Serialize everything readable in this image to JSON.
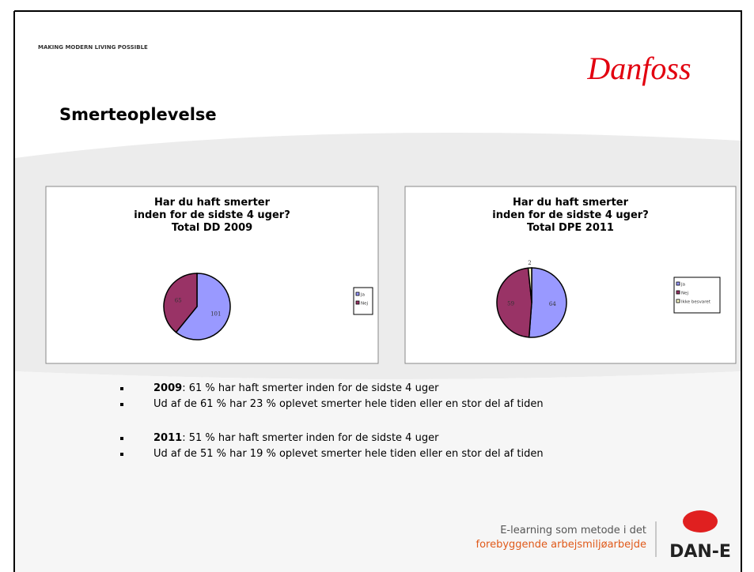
{
  "header": {
    "tagline": "MAKING MODERN LIVING POSSIBLE",
    "logo": "Danfoss",
    "title": "Smerteoplevelse"
  },
  "chart_data": [
    {
      "type": "pie",
      "title": [
        "Har du haft smerter",
        "inden for de sidste 4 uger?",
        "Total DD 2009"
      ],
      "categories": [
        "Ja",
        "Nej"
      ],
      "values": [
        101,
        65
      ],
      "colors": [
        "#9999ff",
        "#993366"
      ],
      "legend": "right"
    },
    {
      "type": "pie",
      "title": [
        "Har du haft smerter",
        "inden for de sidste 4 uger?",
        "Total DPE 2011"
      ],
      "categories": [
        "Ja",
        "Nej",
        "Ikke besvaret"
      ],
      "values": [
        64,
        59,
        2
      ],
      "colors": [
        "#9999ff",
        "#993366",
        "#ffffcc"
      ],
      "legend": "right"
    }
  ],
  "bullets": [
    [
      {
        "bold": "2009",
        "text": ": 61 % har haft smerter inden for de sidste 4 uger"
      },
      {
        "text": "Ud af de 61 % har 23 % oplevet smerter hele tiden eller en stor del af tiden"
      }
    ],
    [
      {
        "bold": "2011",
        "text": ": 51 % har haft smerter inden for de sidste 4 uger"
      },
      {
        "text": "Ud af de 51 % har 19 % oplevet smerter hele tiden eller en stor del af tiden"
      }
    ]
  ],
  "footer": {
    "line1": "E-learning som metode i det",
    "line2": "forebyggende arbejsmiljøarbejde",
    "logo": "DAN-E"
  }
}
